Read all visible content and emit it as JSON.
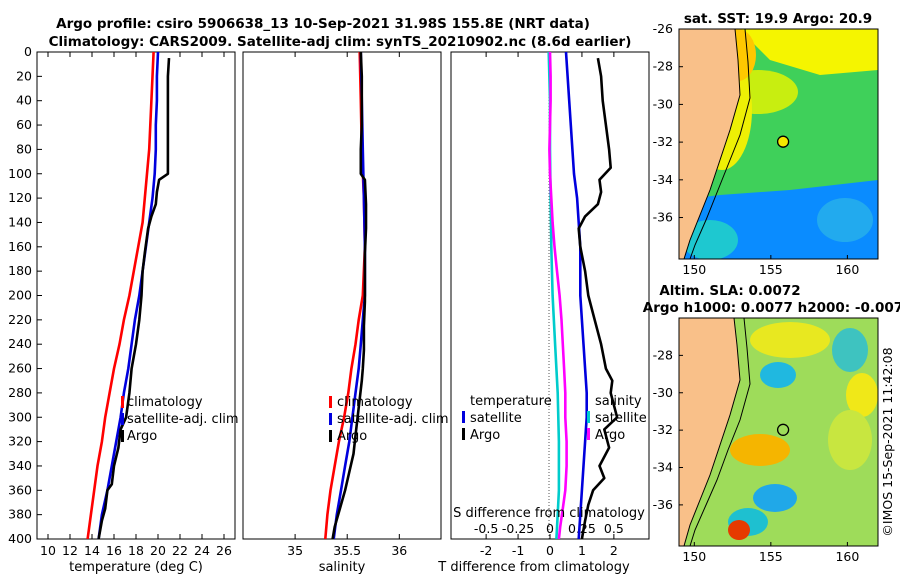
{
  "figure": {
    "title_line1": "Argo profile: csiro 5906638_13 10-Sep-2021 31.98S 155.8E (NRT data)",
    "title_line2": "Climatology: CARS2009. Satellite-adj clim: synTS_20210902.nc (8.6d earlier)",
    "credit": "©IMOS 15-Sep-2021 11:42:08"
  },
  "colors": {
    "climatology": "#ff0000",
    "satellite": "#0000dd",
    "argo": "#000000",
    "salinity_diff": "#00cccc",
    "salinity_sat_diff": "#ff00ff",
    "land": "#f9c089"
  },
  "chart_data": [
    {
      "id": "temperature",
      "type": "line",
      "xlabel": "temperature (deg C)",
      "ylabel": "",
      "xlim": [
        9,
        27
      ],
      "ylim": [
        400,
        0
      ],
      "xticks": [
        "10",
        "12",
        "14",
        "16",
        "18",
        "20",
        "22",
        "24",
        "26"
      ],
      "yticks": [
        "0",
        "20",
        "40",
        "60",
        "80",
        "100",
        "120",
        "140",
        "160",
        "180",
        "200",
        "220",
        "240",
        "260",
        "280",
        "300",
        "320",
        "340",
        "360",
        "380",
        "400"
      ],
      "legend": [
        "climatology",
        "satellite-adj. clim",
        "Argo"
      ],
      "series": [
        {
          "name": "climatology",
          "color": "climatology",
          "points": [
            [
              19.6,
              0
            ],
            [
              19.5,
              20
            ],
            [
              19.4,
              40
            ],
            [
              19.3,
              60
            ],
            [
              19.2,
              80
            ],
            [
              19.0,
              100
            ],
            [
              18.8,
              120
            ],
            [
              18.6,
              140
            ],
            [
              18.2,
              160
            ],
            [
              17.8,
              180
            ],
            [
              17.4,
              200
            ],
            [
              16.9,
              220
            ],
            [
              16.5,
              240
            ],
            [
              16.0,
              260
            ],
            [
              15.6,
              280
            ],
            [
              15.2,
              300
            ],
            [
              14.9,
              320
            ],
            [
              14.5,
              340
            ],
            [
              14.2,
              360
            ],
            [
              13.9,
              380
            ],
            [
              13.6,
              400
            ]
          ]
        },
        {
          "name": "satellite-adj. clim",
          "color": "satellite",
          "points": [
            [
              20.0,
              0
            ],
            [
              19.9,
              20
            ],
            [
              19.9,
              40
            ],
            [
              19.8,
              60
            ],
            [
              19.8,
              80
            ],
            [
              19.7,
              100
            ],
            [
              19.5,
              120
            ],
            [
              19.2,
              140
            ],
            [
              18.9,
              160
            ],
            [
              18.6,
              180
            ],
            [
              18.3,
              200
            ],
            [
              17.9,
              220
            ],
            [
              17.6,
              240
            ],
            [
              17.3,
              260
            ],
            [
              16.9,
              280
            ],
            [
              16.6,
              300
            ],
            [
              16.2,
              320
            ],
            [
              15.8,
              340
            ],
            [
              15.4,
              360
            ],
            [
              14.9,
              380
            ],
            [
              14.6,
              400
            ]
          ]
        },
        {
          "name": "Argo",
          "color": "argo",
          "points": [
            [
              21.0,
              5
            ],
            [
              20.9,
              20
            ],
            [
              20.9,
              40
            ],
            [
              20.9,
              60
            ],
            [
              20.9,
              80
            ],
            [
              20.9,
              100
            ],
            [
              20.1,
              105
            ],
            [
              19.9,
              115
            ],
            [
              19.8,
              125
            ],
            [
              19.4,
              135
            ],
            [
              19.1,
              145
            ],
            [
              18.8,
              165
            ],
            [
              18.6,
              180
            ],
            [
              18.5,
              200
            ],
            [
              18.3,
              220
            ],
            [
              18.0,
              240
            ],
            [
              17.6,
              260
            ],
            [
              17.4,
              280
            ],
            [
              17.1,
              300
            ],
            [
              16.6,
              310
            ],
            [
              16.4,
              325
            ],
            [
              16.0,
              340
            ],
            [
              15.8,
              355
            ],
            [
              15.4,
              360
            ],
            [
              15.2,
              375
            ],
            [
              14.9,
              385
            ],
            [
              14.7,
              395
            ],
            [
              14.6,
              400
            ]
          ]
        }
      ]
    },
    {
      "id": "salinity",
      "type": "line",
      "xlabel": "salinity",
      "ylabel": "",
      "xlim": [
        34.5,
        36.4
      ],
      "ylim": [
        400,
        0
      ],
      "xticks": [
        "35",
        "35.5",
        "36"
      ],
      "legend": [
        "climatology",
        "satellite-adj. clim",
        "Argo"
      ],
      "series": [
        {
          "name": "climatology",
          "color": "climatology",
          "points": [
            [
              35.62,
              0
            ],
            [
              35.63,
              40
            ],
            [
              35.64,
              80
            ],
            [
              35.66,
              120
            ],
            [
              35.67,
              160
            ],
            [
              35.65,
              200
            ],
            [
              35.61,
              220
            ],
            [
              35.58,
              240
            ],
            [
              35.54,
              260
            ],
            [
              35.51,
              280
            ],
            [
              35.47,
              300
            ],
            [
              35.42,
              320
            ],
            [
              35.38,
              340
            ],
            [
              35.34,
              360
            ],
            [
              35.31,
              380
            ],
            [
              35.29,
              400
            ]
          ]
        },
        {
          "name": "satellite-adj. clim",
          "color": "satellite",
          "points": [
            [
              35.63,
              0
            ],
            [
              35.64,
              40
            ],
            [
              35.65,
              80
            ],
            [
              35.66,
              120
            ],
            [
              35.67,
              160
            ],
            [
              35.67,
              200
            ],
            [
              35.65,
              220
            ],
            [
              35.63,
              240
            ],
            [
              35.61,
              260
            ],
            [
              35.58,
              280
            ],
            [
              35.55,
              300
            ],
            [
              35.52,
              320
            ],
            [
              35.48,
              340
            ],
            [
              35.44,
              360
            ],
            [
              35.4,
              380
            ],
            [
              35.37,
              400
            ]
          ]
        },
        {
          "name": "Argo",
          "color": "argo",
          "points": [
            [
              35.63,
              0
            ],
            [
              35.64,
              20
            ],
            [
              35.64,
              40
            ],
            [
              35.64,
              60
            ],
            [
              35.63,
              80
            ],
            [
              35.63,
              100
            ],
            [
              35.67,
              105
            ],
            [
              35.68,
              125
            ],
            [
              35.68,
              145
            ],
            [
              35.67,
              165
            ],
            [
              35.67,
              185
            ],
            [
              35.67,
              205
            ],
            [
              35.66,
              225
            ],
            [
              35.66,
              245
            ],
            [
              35.65,
              260
            ],
            [
              35.64,
              270
            ],
            [
              35.62,
              285
            ],
            [
              35.6,
              300
            ],
            [
              35.58,
              315
            ],
            [
              35.56,
              330
            ],
            [
              35.52,
              345
            ],
            [
              35.48,
              360
            ],
            [
              35.43,
              375
            ],
            [
              35.38,
              390
            ],
            [
              35.36,
              400
            ]
          ]
        }
      ]
    },
    {
      "id": "difference",
      "type": "line",
      "xlabel": "T difference from climatology",
      "xlabel2": "S difference from climatology",
      "xlim": [
        -3.1,
        3.1
      ],
      "ylim": [
        400,
        0
      ],
      "xticks": [
        "-2",
        "-1",
        "0",
        "1",
        "2"
      ],
      "xticks2": [
        "-0.5",
        "-0.25",
        "0",
        "0.25",
        "0.5"
      ],
      "legend_left_title": "temperature",
      "legend_right_title": "salinity",
      "legend_left": [
        "satellite",
        "Argo"
      ],
      "legend_right": [
        "satellite",
        "Argo"
      ],
      "series": [
        {
          "name": "T satellite",
          "color": "satellite",
          "points": [
            [
              0.5,
              0
            ],
            [
              0.55,
              20
            ],
            [
              0.6,
              40
            ],
            [
              0.65,
              60
            ],
            [
              0.7,
              80
            ],
            [
              0.75,
              100
            ],
            [
              0.85,
              120
            ],
            [
              0.9,
              140
            ],
            [
              0.95,
              160
            ],
            [
              0.95,
              180
            ],
            [
              0.95,
              200
            ],
            [
              1.0,
              220
            ],
            [
              1.05,
              240
            ],
            [
              1.1,
              260
            ],
            [
              1.15,
              280
            ],
            [
              1.15,
              300
            ],
            [
              1.1,
              320
            ],
            [
              1.05,
              340
            ],
            [
              1.0,
              360
            ],
            [
              0.95,
              380
            ],
            [
              0.9,
              400
            ]
          ]
        },
        {
          "name": "T Argo",
          "color": "argo",
          "points": [
            [
              1.5,
              5
            ],
            [
              1.6,
              20
            ],
            [
              1.65,
              40
            ],
            [
              1.75,
              60
            ],
            [
              1.85,
              80
            ],
            [
              1.9,
              95
            ],
            [
              1.55,
              105
            ],
            [
              1.6,
              115
            ],
            [
              1.5,
              125
            ],
            [
              1.1,
              135
            ],
            [
              0.9,
              145
            ],
            [
              0.95,
              160
            ],
            [
              1.1,
              180
            ],
            [
              1.2,
              200
            ],
            [
              1.4,
              220
            ],
            [
              1.6,
              240
            ],
            [
              1.75,
              260
            ],
            [
              1.95,
              270
            ],
            [
              1.9,
              280
            ],
            [
              2.1,
              300
            ],
            [
              1.7,
              310
            ],
            [
              1.85,
              325
            ],
            [
              1.55,
              340
            ],
            [
              1.7,
              350
            ],
            [
              1.35,
              360
            ],
            [
              1.2,
              372
            ],
            [
              1.1,
              385
            ],
            [
              1.0,
              400
            ]
          ]
        },
        {
          "name": "S satellite",
          "color": "salinity_diff",
          "points": [
            [
              -0.01,
              0
            ],
            [
              0.0,
              40
            ],
            [
              0.0,
              80
            ],
            [
              0.005,
              120
            ],
            [
              0.01,
              160
            ],
            [
              0.02,
              200
            ],
            [
              0.04,
              240
            ],
            [
              0.06,
              280
            ],
            [
              0.07,
              320
            ],
            [
              0.07,
              360
            ],
            [
              0.06,
              380
            ],
            [
              0.05,
              400
            ]
          ]
        },
        {
          "name": "S Argo",
          "color": "salinity_sat_diff",
          "points": [
            [
              0.0,
              0
            ],
            [
              0.005,
              20
            ],
            [
              0.005,
              40
            ],
            [
              0.0,
              60
            ],
            [
              -0.005,
              80
            ],
            [
              0.0,
              100
            ],
            [
              0.01,
              120
            ],
            [
              0.02,
              140
            ],
            [
              0.035,
              160
            ],
            [
              0.055,
              180
            ],
            [
              0.075,
              200
            ],
            [
              0.09,
              220
            ],
            [
              0.1,
              240
            ],
            [
              0.11,
              260
            ],
            [
              0.12,
              280
            ],
            [
              0.12,
              300
            ],
            [
              0.13,
              320
            ],
            [
              0.13,
              340
            ],
            [
              0.12,
              360
            ],
            [
              0.1,
              375
            ],
            [
              0.08,
              390
            ],
            [
              0.07,
              400
            ]
          ]
        }
      ]
    },
    {
      "id": "sst_map",
      "type": "heatmap",
      "title": "sat. SST: 19.9 Argo: 20.9",
      "xlim": [
        149,
        162
      ],
      "ylim": [
        -38.2,
        -26
      ],
      "xticks": [
        "150",
        "155",
        "160"
      ],
      "yticks": [
        "-26",
        "-28",
        "-30",
        "-32",
        "-34",
        "-36"
      ],
      "marker": {
        "lon": 155.8,
        "lat": -31.98
      }
    },
    {
      "id": "sla_map",
      "type": "heatmap",
      "title_line1": "Altim. SLA: 0.0072",
      "title_line2": "Argo h1000: 0.0077 h2000: -0.007",
      "xlim": [
        149,
        162
      ],
      "ylim": [
        -38.2,
        -26
      ],
      "xticks": [
        "150",
        "155",
        "160"
      ],
      "yticks": [
        "-28",
        "-30",
        "-32",
        "-34",
        "-36"
      ],
      "marker": {
        "lon": 155.8,
        "lat": -31.98
      }
    }
  ]
}
